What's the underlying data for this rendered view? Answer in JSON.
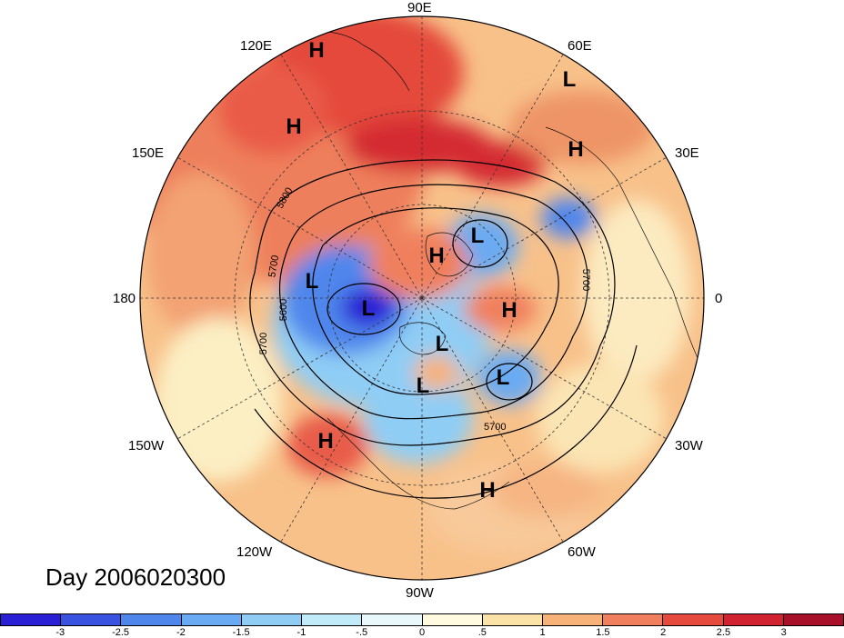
{
  "title": "Day 2006020300",
  "lon_labels": {
    "e90": "90E",
    "e120": "120E",
    "e60": "60E",
    "e150": "150E",
    "e30": "30E",
    "w180": "180",
    "zero": "0",
    "w150": "150W",
    "w30": "30W",
    "w120": "120W",
    "w60": "60W",
    "w90": "90W"
  },
  "pressure_centers": [
    {
      "label": "H"
    },
    {
      "label": "H"
    },
    {
      "label": "L"
    },
    {
      "label": "H"
    },
    {
      "label": "L"
    },
    {
      "label": "H"
    },
    {
      "label": "L"
    },
    {
      "label": "L"
    },
    {
      "label": "H"
    },
    {
      "label": "L"
    },
    {
      "label": "L"
    },
    {
      "label": "L"
    },
    {
      "label": "H"
    },
    {
      "label": "H"
    }
  ],
  "contour_labels": [
    "5800",
    "5700",
    "5600",
    "5700",
    "5700",
    "5700"
  ],
  "colorbar": {
    "colors": [
      "#2a1fd4",
      "#3a52e0",
      "#4f86ec",
      "#6aaaf2",
      "#8fcdf5",
      "#c2ebf9",
      "#e9f8fb",
      "#fffbe0",
      "#fbe3a8",
      "#f7b27a",
      "#f0805d",
      "#e54a3c",
      "#d02230",
      "#a8102a"
    ],
    "labels": [
      "-3",
      "-2.5",
      "-2",
      "-1.5",
      "-1",
      "-.5",
      "0",
      ".5",
      "1",
      "1.5",
      "2",
      "2.5",
      "3"
    ]
  }
}
